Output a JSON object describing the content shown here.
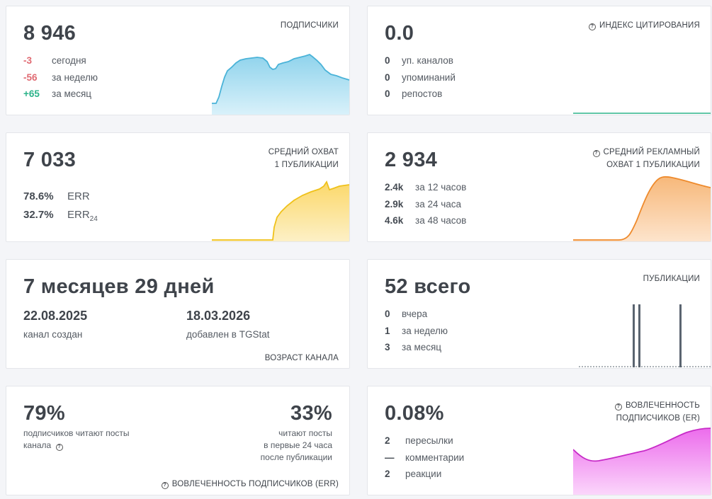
{
  "subscribers": {
    "value": "8 946",
    "title": "ПОДПИСЧИКИ",
    "stats": [
      {
        "value": "-3",
        "label": "сегодня"
      },
      {
        "value": "-56",
        "label": "за неделю"
      },
      {
        "value": "+65",
        "label": "за месяц"
      }
    ],
    "color": "#5bc0de"
  },
  "citation": {
    "value": "0.0",
    "title": "ИНДЕКС ЦИТИРОВАНИЯ",
    "stats": [
      {
        "value": "0",
        "label": "уп. каналов"
      },
      {
        "value": "0",
        "label": "упоминаний"
      },
      {
        "value": "0",
        "label": "репостов"
      }
    ],
    "color": "#2bb38a"
  },
  "reach": {
    "value": "7 033",
    "title_line1": "СРЕДНИЙ ОХВАТ",
    "title_line2": "1 ПУБЛИКАЦИИ",
    "err": {
      "value": "78.6%",
      "label": "ERR"
    },
    "err24": {
      "value": "32.7%",
      "label": "ERR",
      "sub": "24"
    },
    "color": "#f0c419"
  },
  "ad_reach": {
    "value": "2 934",
    "title_line1": "СРЕДНИЙ РЕКЛАМНЫЙ",
    "title_line2": "ОХВАТ 1 ПУБЛИКАЦИИ",
    "stats": [
      {
        "value": "2.4k",
        "label": "за 12 часов"
      },
      {
        "value": "2.9k",
        "label": "за 24 часа"
      },
      {
        "value": "4.6k",
        "label": "за 48 часов"
      }
    ],
    "color": "#f0923a"
  },
  "age": {
    "value": "7 месяцев 29 дней",
    "created_date": "22.08.2025",
    "created_label": "канал создан",
    "added_date": "18.03.2026",
    "added_label": "добавлен в TGStat",
    "title": "ВОЗРАСТ КАНАЛА"
  },
  "posts": {
    "value": "52 всего",
    "title": "ПУБЛИКАЦИИ",
    "stats": [
      {
        "value": "0",
        "label": "вчера"
      },
      {
        "value": "1",
        "label": "за неделю"
      },
      {
        "value": "3",
        "label": "за месяц"
      }
    ],
    "color": "#5a6470"
  },
  "engagement_err": {
    "left_value": "79%",
    "left_text_line1": "подписчиков читают посты",
    "left_text_line2": "канала",
    "right_value": "33%",
    "right_text_line1": "читают посты",
    "right_text_line2": "в первые 24 часа",
    "right_text_line3": "после публикации",
    "title": "ВОВЛЕЧЕННОСТЬ ПОДПИСЧИКОВ (ERR)"
  },
  "engagement_er": {
    "value": "0.08%",
    "title_line1": "ВОВЛЕЧЕННОСТЬ",
    "title_line2": "ПОДПИСЧИКОВ (ER)",
    "stats": [
      {
        "value": "2",
        "label": "пересылки"
      },
      {
        "value": "—",
        "label": "комментарии"
      },
      {
        "value": "2",
        "label": "реакции"
      }
    ],
    "color": "#d53ad5"
  },
  "icons": {
    "help": "question-circle-icon"
  }
}
